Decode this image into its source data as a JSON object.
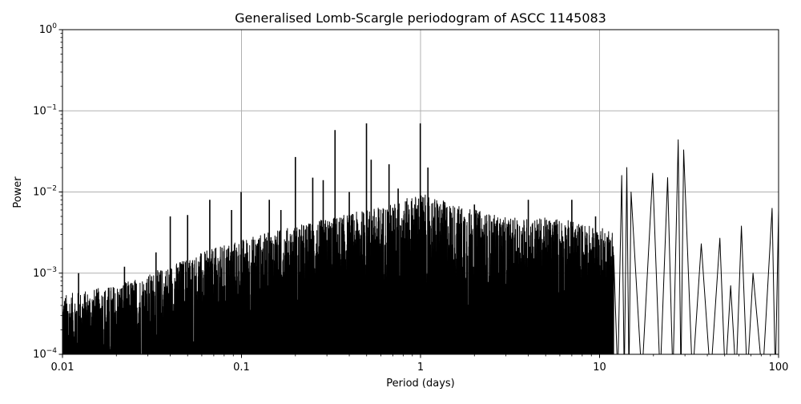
{
  "chart_data": {
    "type": "line",
    "title": "Generalised Lomb-Scargle periodogram of ASCC 1145083",
    "xlabel": "Period (days)",
    "ylabel": "Power",
    "xscale": "log",
    "yscale": "log",
    "xlim": [
      0.01,
      100
    ],
    "ylim": [
      0.0001,
      1
    ],
    "grid": true,
    "x_ticks": [
      {
        "value": 0.01,
        "label": "0.01"
      },
      {
        "value": 0.1,
        "label": "0.1"
      },
      {
        "value": 1,
        "label": "1"
      },
      {
        "value": 10,
        "label": "10"
      },
      {
        "value": 100,
        "label": "100"
      }
    ],
    "y_ticks": [
      {
        "value": 0.0001,
        "base": "10",
        "exp": "−4"
      },
      {
        "value": 0.001,
        "base": "10",
        "exp": "−3"
      },
      {
        "value": 0.01,
        "base": "10",
        "exp": "−2"
      },
      {
        "value": 0.1,
        "base": "10",
        "exp": "−1"
      },
      {
        "value": 1,
        "base": "10",
        "exp": "0"
      }
    ],
    "line_color": "#000000",
    "grid_color": "#b0b0b0",
    "series": [
      {
        "notable_peaks": [
          {
            "period": 0.0123,
            "power": 0.001
          },
          {
            "period": 0.0222,
            "power": 0.0012
          },
          {
            "period": 0.0333,
            "power": 0.0018
          },
          {
            "period": 0.04,
            "power": 0.005
          },
          {
            "period": 0.05,
            "power": 0.0052
          },
          {
            "period": 0.0665,
            "power": 0.008
          },
          {
            "period": 0.088,
            "power": 0.006
          },
          {
            "period": 0.0995,
            "power": 0.01
          },
          {
            "period": 0.143,
            "power": 0.008
          },
          {
            "period": 0.166,
            "power": 0.006
          },
          {
            "period": 0.2,
            "power": 0.027
          },
          {
            "period": 0.25,
            "power": 0.015
          },
          {
            "period": 0.286,
            "power": 0.014
          },
          {
            "period": 0.333,
            "power": 0.058
          },
          {
            "period": 0.4,
            "power": 0.01
          },
          {
            "period": 0.499,
            "power": 0.07
          },
          {
            "period": 0.53,
            "power": 0.025
          },
          {
            "period": 0.667,
            "power": 0.022
          },
          {
            "period": 0.75,
            "power": 0.011
          },
          {
            "period": 0.997,
            "power": 0.07
          },
          {
            "period": 1.1,
            "power": 0.02
          },
          {
            "period": 2.0,
            "power": 0.007
          },
          {
            "period": 4.0,
            "power": 0.008
          },
          {
            "period": 7.0,
            "power": 0.008
          },
          {
            "period": 9.5,
            "power": 0.005
          },
          {
            "period": 13.3,
            "power": 0.016
          },
          {
            "period": 14.2,
            "power": 0.02
          },
          {
            "period": 15.0,
            "power": 0.01
          },
          {
            "period": 19.8,
            "power": 0.017
          },
          {
            "period": 24.0,
            "power": 0.015
          },
          {
            "period": 27.5,
            "power": 0.044
          },
          {
            "period": 29.5,
            "power": 0.033
          },
          {
            "period": 37.0,
            "power": 0.0023
          },
          {
            "period": 47.0,
            "power": 0.0027
          },
          {
            "period": 54.0,
            "power": 0.0007
          },
          {
            "period": 62.0,
            "power": 0.0038
          },
          {
            "period": 72.0,
            "power": 0.001
          },
          {
            "period": 92.0,
            "power": 0.0063
          },
          {
            "period": 100.0,
            "power": 0.006
          }
        ],
        "envelope": [
          {
            "period": 0.01,
            "power": 0.00045
          },
          {
            "period": 0.02,
            "power": 0.0006
          },
          {
            "period": 0.03,
            "power": 0.0008
          },
          {
            "period": 0.05,
            "power": 0.0013
          },
          {
            "period": 0.1,
            "power": 0.0022
          },
          {
            "period": 0.2,
            "power": 0.0032
          },
          {
            "period": 0.4,
            "power": 0.0045
          },
          {
            "period": 0.7,
            "power": 0.006
          },
          {
            "period": 1.0,
            "power": 0.008
          },
          {
            "period": 1.5,
            "power": 0.006
          },
          {
            "period": 3.0,
            "power": 0.004
          },
          {
            "period": 6.0,
            "power": 0.004
          },
          {
            "period": 10.0,
            "power": 0.003
          }
        ]
      }
    ]
  }
}
